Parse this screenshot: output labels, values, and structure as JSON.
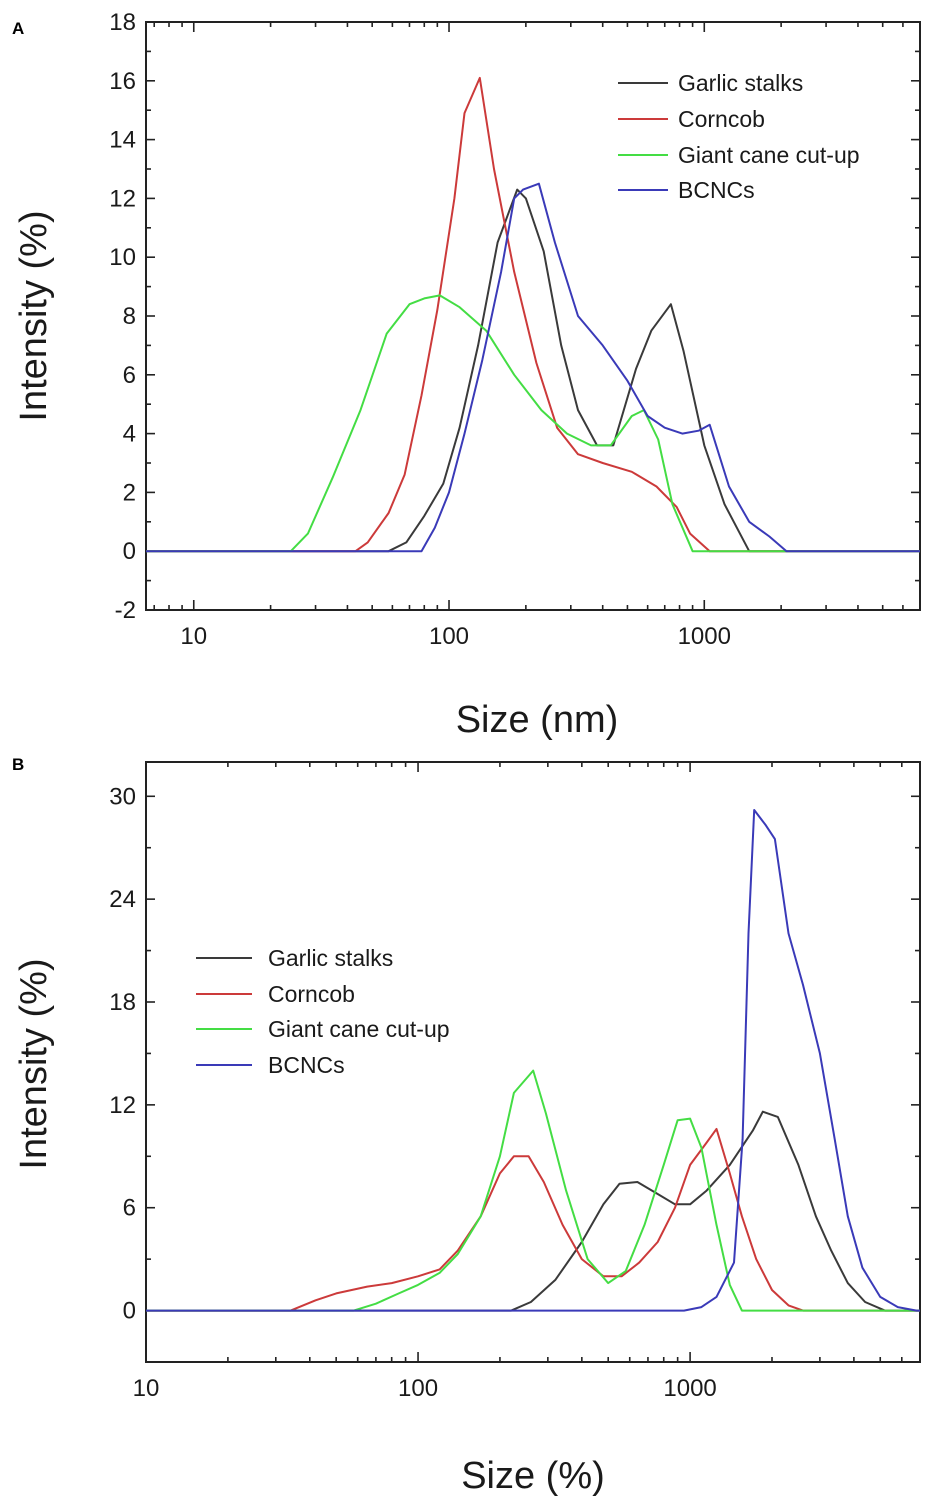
{
  "chart_data": [
    {
      "panel": "A",
      "type": "line",
      "xscale": "log",
      "xlabel": "Size (nm)",
      "ylabel": "Intensity (%)",
      "xlim": [
        6.5,
        7000
      ],
      "ylim": [
        -2,
        18
      ],
      "xticks": [
        10,
        100,
        1000
      ],
      "xtick_labels": [
        "10",
        "100",
        "1000"
      ],
      "yticks": [
        -2,
        0,
        2,
        4,
        6,
        8,
        10,
        12,
        14,
        16,
        18
      ],
      "ytick_labels": [
        "-2",
        "0",
        "2",
        "4",
        "6",
        "8",
        "10",
        "12",
        "14",
        "16",
        "18"
      ],
      "legend_position": "top-right",
      "series": [
        {
          "name": "Garlic stalks",
          "color": "#3a3a3a",
          "points": [
            [
              6.5,
              0
            ],
            [
              58,
              0
            ],
            [
              68,
              0.3
            ],
            [
              80,
              1.2
            ],
            [
              95,
              2.3
            ],
            [
              110,
              4.2
            ],
            [
              130,
              7.0
            ],
            [
              155,
              10.5
            ],
            [
              185,
              12.3
            ],
            [
              200,
              12.0
            ],
            [
              235,
              10.2
            ],
            [
              275,
              7.0
            ],
            [
              320,
              4.8
            ],
            [
              380,
              3.6
            ],
            [
              440,
              3.6
            ],
            [
              540,
              6.2
            ],
            [
              620,
              7.5
            ],
            [
              740,
              8.4
            ],
            [
              830,
              6.8
            ],
            [
              1000,
              3.6
            ],
            [
              1200,
              1.6
            ],
            [
              1500,
              0
            ],
            [
              7000,
              0
            ]
          ]
        },
        {
          "name": "Corncob",
          "color": "#cc3a3a",
          "points": [
            [
              6.5,
              0
            ],
            [
              43,
              0
            ],
            [
              48,
              0.3
            ],
            [
              58,
              1.3
            ],
            [
              67,
              2.6
            ],
            [
              78,
              5.3
            ],
            [
              90,
              8.2
            ],
            [
              105,
              12.0
            ],
            [
              115,
              14.9
            ],
            [
              132,
              16.1
            ],
            [
              150,
              13.0
            ],
            [
              180,
              9.5
            ],
            [
              220,
              6.4
            ],
            [
              265,
              4.2
            ],
            [
              320,
              3.3
            ],
            [
              400,
              3.0
            ],
            [
              520,
              2.7
            ],
            [
              650,
              2.2
            ],
            [
              780,
              1.5
            ],
            [
              880,
              0.6
            ],
            [
              1050,
              0
            ],
            [
              7000,
              0
            ]
          ]
        },
        {
          "name": "Giant cane cut-up",
          "color": "#44dd44",
          "points": [
            [
              6.5,
              0
            ],
            [
              24,
              0
            ],
            [
              28,
              0.6
            ],
            [
              35,
              2.5
            ],
            [
              45,
              4.8
            ],
            [
              57,
              7.4
            ],
            [
              70,
              8.4
            ],
            [
              80,
              8.6
            ],
            [
              92,
              8.7
            ],
            [
              110,
              8.3
            ],
            [
              140,
              7.5
            ],
            [
              180,
              6.0
            ],
            [
              230,
              4.8
            ],
            [
              290,
              4.0
            ],
            [
              360,
              3.6
            ],
            [
              430,
              3.6
            ],
            [
              520,
              4.6
            ],
            [
              580,
              4.8
            ],
            [
              660,
              3.8
            ],
            [
              750,
              1.6
            ],
            [
              900,
              0
            ],
            [
              7000,
              0
            ]
          ]
        },
        {
          "name": "BCNCs",
          "color": "#3a3ab8",
          "points": [
            [
              6.5,
              0
            ],
            [
              78,
              0
            ],
            [
              88,
              0.8
            ],
            [
              100,
              2.0
            ],
            [
              115,
              4.0
            ],
            [
              135,
              6.5
            ],
            [
              160,
              9.5
            ],
            [
              180,
              12.0
            ],
            [
              195,
              12.3
            ],
            [
              225,
              12.5
            ],
            [
              260,
              10.5
            ],
            [
              320,
              8.0
            ],
            [
              400,
              7.0
            ],
            [
              500,
              5.8
            ],
            [
              600,
              4.6
            ],
            [
              700,
              4.2
            ],
            [
              820,
              4.0
            ],
            [
              950,
              4.1
            ],
            [
              1050,
              4.3
            ],
            [
              1250,
              2.2
            ],
            [
              1500,
              1.0
            ],
            [
              1800,
              0.5
            ],
            [
              2100,
              0
            ],
            [
              7000,
              0
            ]
          ]
        }
      ]
    },
    {
      "panel": "B",
      "type": "line",
      "xscale": "log",
      "xlabel": "Size (%)",
      "ylabel": "Intensity (%)",
      "xlim": [
        10,
        7000
      ],
      "ylim": [
        -3,
        32
      ],
      "xticks": [
        10,
        100,
        1000
      ],
      "xtick_labels": [
        "10",
        "100",
        "1000"
      ],
      "yticks": [
        0,
        6,
        12,
        18,
        24,
        30
      ],
      "ytick_labels": [
        "0",
        "6",
        "12",
        "18",
        "24",
        "30"
      ],
      "legend_position": "left",
      "series": [
        {
          "name": "Garlic stalks",
          "color": "#3a3a3a",
          "points": [
            [
              10,
              0
            ],
            [
              220,
              0
            ],
            [
              260,
              0.5
            ],
            [
              320,
              1.8
            ],
            [
              400,
              4.0
            ],
            [
              480,
              6.2
            ],
            [
              550,
              7.4
            ],
            [
              640,
              7.5
            ],
            [
              760,
              6.8
            ],
            [
              880,
              6.2
            ],
            [
              1000,
              6.2
            ],
            [
              1150,
              7.0
            ],
            [
              1400,
              8.5
            ],
            [
              1700,
              10.5
            ],
            [
              1850,
              11.6
            ],
            [
              2100,
              11.3
            ],
            [
              2500,
              8.5
            ],
            [
              2900,
              5.5
            ],
            [
              3300,
              3.5
            ],
            [
              3800,
              1.6
            ],
            [
              4400,
              0.5
            ],
            [
              5200,
              0
            ],
            [
              7000,
              0
            ]
          ]
        },
        {
          "name": "Corncob",
          "color": "#cc3a3a",
          "points": [
            [
              10,
              0
            ],
            [
              34,
              0
            ],
            [
              42,
              0.6
            ],
            [
              50,
              1.0
            ],
            [
              65,
              1.4
            ],
            [
              80,
              1.6
            ],
            [
              100,
              2.0
            ],
            [
              120,
              2.4
            ],
            [
              140,
              3.5
            ],
            [
              170,
              5.5
            ],
            [
              200,
              8.0
            ],
            [
              225,
              9.0
            ],
            [
              255,
              9.0
            ],
            [
              290,
              7.5
            ],
            [
              340,
              5.0
            ],
            [
              400,
              3.0
            ],
            [
              480,
              2.0
            ],
            [
              560,
              2.0
            ],
            [
              650,
              2.8
            ],
            [
              760,
              4.0
            ],
            [
              880,
              6.0
            ],
            [
              1000,
              8.5
            ],
            [
              1150,
              9.8
            ],
            [
              1250,
              10.6
            ],
            [
              1400,
              8.0
            ],
            [
              1550,
              5.5
            ],
            [
              1750,
              3.0
            ],
            [
              2000,
              1.2
            ],
            [
              2300,
              0.3
            ],
            [
              2600,
              0
            ],
            [
              7000,
              0
            ]
          ]
        },
        {
          "name": "Giant cane cut-up",
          "color": "#44dd44",
          "points": [
            [
              10,
              0
            ],
            [
              58,
              0
            ],
            [
              70,
              0.4
            ],
            [
              85,
              1.0
            ],
            [
              100,
              1.5
            ],
            [
              120,
              2.2
            ],
            [
              140,
              3.3
            ],
            [
              170,
              5.5
            ],
            [
              200,
              9.0
            ],
            [
              225,
              12.7
            ],
            [
              265,
              14.0
            ],
            [
              295,
              11.5
            ],
            [
              350,
              7.0
            ],
            [
              420,
              3.0
            ],
            [
              500,
              1.6
            ],
            [
              580,
              2.3
            ],
            [
              680,
              5.0
            ],
            [
              800,
              8.5
            ],
            [
              900,
              11.1
            ],
            [
              1000,
              11.2
            ],
            [
              1100,
              9.5
            ],
            [
              1250,
              5.0
            ],
            [
              1400,
              1.5
            ],
            [
              1550,
              0
            ],
            [
              7000,
              0
            ]
          ]
        },
        {
          "name": "BCNCs",
          "color": "#3a3ab8",
          "points": [
            [
              10,
              0
            ],
            [
              950,
              0
            ],
            [
              1100,
              0.2
            ],
            [
              1250,
              0.8
            ],
            [
              1450,
              2.8
            ],
            [
              1560,
              10.0
            ],
            [
              1640,
              22.0
            ],
            [
              1720,
              29.2
            ],
            [
              1900,
              28.3
            ],
            [
              2050,
              27.5
            ],
            [
              2300,
              22.0
            ],
            [
              2600,
              19.0
            ],
            [
              3000,
              15.0
            ],
            [
              3400,
              10.0
            ],
            [
              3800,
              5.5
            ],
            [
              4300,
              2.5
            ],
            [
              5000,
              0.8
            ],
            [
              5800,
              0.2
            ],
            [
              6800,
              0
            ],
            [
              7000,
              0
            ]
          ]
        }
      ]
    }
  ],
  "panels": {
    "a": {
      "label": "A",
      "xlabel": "Size (nm)",
      "ylabel": "Intensity (%)",
      "legend": [
        "Garlic stalks",
        "Corncob",
        "Giant cane cut-up",
        "BCNCs"
      ]
    },
    "b": {
      "label": "B",
      "xlabel": "Size (%)",
      "ylabel": "Intensity (%)",
      "legend": [
        "Garlic stalks",
        "Corncob",
        "Giant cane cut-up",
        "BCNCs"
      ]
    }
  }
}
